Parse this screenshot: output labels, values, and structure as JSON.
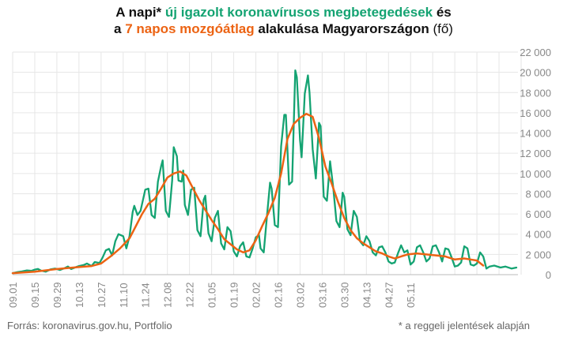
{
  "title": {
    "line1_a": "A napi* ",
    "line1_green": "új igazolt koronavírusos megbetegedések",
    "line1_b": " és",
    "line2_a": "a ",
    "line2_orange": "7 napos mozgóátlag",
    "line2_b": " alakulása Magyarországon",
    "line2_unit": " (fő)"
  },
  "footer": {
    "source": "Forrás: koronavirus.gov.hu, Portfolio",
    "note": "* a reggeli jelentések alapján"
  },
  "colors": {
    "daily": "#14a372",
    "average": "#ec6313",
    "grid": "#e6e6e6",
    "axis_text": "#888888"
  },
  "chart_data": {
    "type": "line",
    "ylim": [
      0,
      22000
    ],
    "y_ticks": [
      "0",
      "2 000",
      "4 000",
      "6 000",
      "8 000",
      "10 000",
      "12 000",
      "14 000",
      "16 000",
      "18 000",
      "20 000",
      "22 000"
    ],
    "x_tick_labels": [
      "09.01",
      "09.15",
      "09.29",
      "10.13",
      "10.27",
      "11.10",
      "11.24",
      "12.08",
      "12.22",
      "01.05",
      "01.19",
      "02.02",
      "02.16",
      "03.02",
      "03.16",
      "03.30",
      "04.13",
      "04.27",
      "05.11"
    ],
    "grid": true,
    "series": [
      {
        "key": "daily",
        "values": [
          [
            0,
            150
          ],
          [
            3,
            250
          ],
          [
            6,
            320
          ],
          [
            9,
            420
          ],
          [
            12,
            380
          ],
          [
            14,
            500
          ],
          [
            16,
            560
          ],
          [
            18,
            400
          ],
          [
            21,
            300
          ],
          [
            24,
            520
          ],
          [
            27,
            600
          ],
          [
            30,
            460
          ],
          [
            33,
            650
          ],
          [
            35,
            800
          ],
          [
            37,
            550
          ],
          [
            40,
            740
          ],
          [
            42,
            850
          ],
          [
            45,
            950
          ],
          [
            47,
            1100
          ],
          [
            50,
            850
          ],
          [
            52,
            1250
          ],
          [
            55,
            1150
          ],
          [
            57,
            1700
          ],
          [
            59,
            2400
          ],
          [
            61,
            2550
          ],
          [
            63,
            1900
          ],
          [
            65,
            3300
          ],
          [
            67,
            4000
          ],
          [
            70,
            3800
          ],
          [
            72,
            2600
          ],
          [
            74,
            3800
          ],
          [
            76,
            6200
          ],
          [
            77,
            6800
          ],
          [
            79,
            5900
          ],
          [
            81,
            6300
          ],
          [
            84,
            8400
          ],
          [
            86,
            8500
          ],
          [
            88,
            5900
          ],
          [
            90,
            5600
          ],
          [
            92,
            9200
          ],
          [
            94,
            10700
          ],
          [
            95,
            11300
          ],
          [
            97,
            6300
          ],
          [
            99,
            5700
          ],
          [
            101,
            9300
          ],
          [
            102,
            12600
          ],
          [
            104,
            11700
          ],
          [
            105,
            9300
          ],
          [
            107,
            9200
          ],
          [
            108,
            10300
          ],
          [
            109,
            6900
          ],
          [
            111,
            5900
          ],
          [
            113,
            8400
          ],
          [
            115,
            8600
          ],
          [
            117,
            4400
          ],
          [
            119,
            3800
          ],
          [
            121,
            7400
          ],
          [
            122,
            7800
          ],
          [
            124,
            4100
          ],
          [
            126,
            3300
          ],
          [
            128,
            5600
          ],
          [
            130,
            6300
          ],
          [
            132,
            3100
          ],
          [
            134,
            2500
          ],
          [
            136,
            4700
          ],
          [
            138,
            4300
          ],
          [
            140,
            2300
          ],
          [
            142,
            1800
          ],
          [
            144,
            2800
          ],
          [
            146,
            3200
          ],
          [
            148,
            1800
          ],
          [
            150,
            1700
          ],
          [
            152,
            2600
          ],
          [
            154,
            3700
          ],
          [
            156,
            3900
          ],
          [
            157,
            2600
          ],
          [
            159,
            2200
          ],
          [
            161,
            5700
          ],
          [
            163,
            9100
          ],
          [
            164,
            8500
          ],
          [
            166,
            4900
          ],
          [
            168,
            4700
          ],
          [
            170,
            12700
          ],
          [
            172,
            15800
          ],
          [
            173,
            15800
          ],
          [
            175,
            8900
          ],
          [
            177,
            9200
          ],
          [
            179,
            20200
          ],
          [
            180,
            19500
          ],
          [
            182,
            13300
          ],
          [
            183,
            11600
          ],
          [
            185,
            17900
          ],
          [
            187,
            19700
          ],
          [
            188,
            18000
          ],
          [
            190,
            12400
          ],
          [
            192,
            9500
          ],
          [
            194,
            15000
          ],
          [
            195,
            14700
          ],
          [
            197,
            7700
          ],
          [
            199,
            7300
          ],
          [
            201,
            11200
          ],
          [
            203,
            8600
          ],
          [
            205,
            5300
          ],
          [
            207,
            4700
          ],
          [
            209,
            8100
          ],
          [
            210,
            7700
          ],
          [
            212,
            4500
          ],
          [
            214,
            3900
          ],
          [
            216,
            6300
          ],
          [
            218,
            5700
          ],
          [
            220,
            3300
          ],
          [
            222,
            2900
          ],
          [
            224,
            3800
          ],
          [
            226,
            3300
          ],
          [
            228,
            2200
          ],
          [
            230,
            1900
          ],
          [
            232,
            2700
          ],
          [
            234,
            2800
          ],
          [
            236,
            2200
          ],
          [
            238,
            1300
          ],
          [
            240,
            1100
          ],
          [
            242,
            1200
          ],
          [
            244,
            2100
          ],
          [
            246,
            2900
          ],
          [
            248,
            2200
          ],
          [
            250,
            2400
          ],
          [
            252,
            1000
          ],
          [
            254,
            1300
          ],
          [
            256,
            2700
          ],
          [
            258,
            2900
          ],
          [
            260,
            2200
          ],
          [
            262,
            1300
          ],
          [
            264,
            1600
          ],
          [
            266,
            2800
          ],
          [
            268,
            2900
          ],
          [
            270,
            2200
          ],
          [
            272,
            1300
          ],
          [
            274,
            2600
          ],
          [
            276,
            2500
          ],
          [
            278,
            1700
          ],
          [
            280,
            800
          ],
          [
            282,
            900
          ],
          [
            284,
            1200
          ],
          [
            286,
            2800
          ],
          [
            288,
            2600
          ],
          [
            290,
            1000
          ],
          [
            292,
            900
          ],
          [
            294,
            1100
          ],
          [
            296,
            2200
          ],
          [
            298,
            1800
          ],
          [
            300,
            600
          ],
          [
            302,
            800
          ],
          [
            305,
            900
          ],
          [
            309,
            700
          ],
          [
            312,
            800
          ],
          [
            316,
            600
          ],
          [
            319,
            700
          ]
        ]
      },
      {
        "key": "average",
        "values": [
          [
            0,
            150
          ],
          [
            14,
            300
          ],
          [
            28,
            550
          ],
          [
            42,
            750
          ],
          [
            50,
            850
          ],
          [
            56,
            1100
          ],
          [
            62,
            1800
          ],
          [
            68,
            2600
          ],
          [
            74,
            3600
          ],
          [
            78,
            4800
          ],
          [
            82,
            6000
          ],
          [
            86,
            7000
          ],
          [
            90,
            7500
          ],
          [
            94,
            8500
          ],
          [
            98,
            9600
          ],
          [
            102,
            10000
          ],
          [
            106,
            10200
          ],
          [
            110,
            9800
          ],
          [
            114,
            8600
          ],
          [
            118,
            7400
          ],
          [
            122,
            6400
          ],
          [
            126,
            5400
          ],
          [
            130,
            4500
          ],
          [
            134,
            3500
          ],
          [
            138,
            3000
          ],
          [
            142,
            2500
          ],
          [
            146,
            2200
          ],
          [
            150,
            2400
          ],
          [
            154,
            3400
          ],
          [
            158,
            4800
          ],
          [
            162,
            6100
          ],
          [
            166,
            7600
          ],
          [
            170,
            10000
          ],
          [
            174,
            13400
          ],
          [
            178,
            14900
          ],
          [
            182,
            15500
          ],
          [
            186,
            15900
          ],
          [
            190,
            15600
          ],
          [
            194,
            13500
          ],
          [
            198,
            10700
          ],
          [
            202,
            9000
          ],
          [
            206,
            7200
          ],
          [
            210,
            5600
          ],
          [
            214,
            4400
          ],
          [
            218,
            3600
          ],
          [
            222,
            3100
          ],
          [
            226,
            2700
          ],
          [
            230,
            2300
          ],
          [
            234,
            2100
          ],
          [
            238,
            1800
          ],
          [
            242,
            1600
          ],
          [
            246,
            1800
          ],
          [
            250,
            2000
          ],
          [
            256,
            2100
          ],
          [
            262,
            2000
          ],
          [
            268,
            1900
          ],
          [
            274,
            1800
          ],
          [
            280,
            1500
          ],
          [
            286,
            1600
          ],
          [
            290,
            1500
          ],
          [
            294,
            1400
          ],
          [
            298,
            900
          ]
        ]
      }
    ]
  }
}
